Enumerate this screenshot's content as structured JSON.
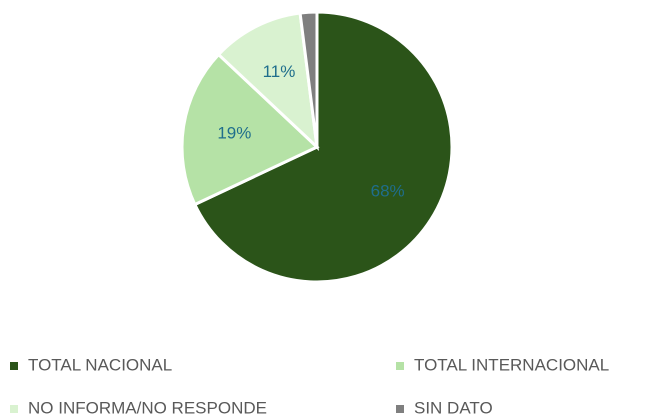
{
  "chart_data": {
    "type": "pie",
    "categories": [
      "TOTAL NACIONAL",
      "TOTAL INTERNACIONAL",
      "NO INFORMA/NO RESPONDE",
      "SIN DATO"
    ],
    "values": [
      68,
      19,
      11,
      2
    ],
    "value_labels": [
      "68%",
      "19%",
      "11%",
      null
    ],
    "colors": [
      "#2b5419",
      "#b5e2a6",
      "#d9f2d0",
      "#7f7f7f"
    ],
    "legend": "bottom"
  }
}
